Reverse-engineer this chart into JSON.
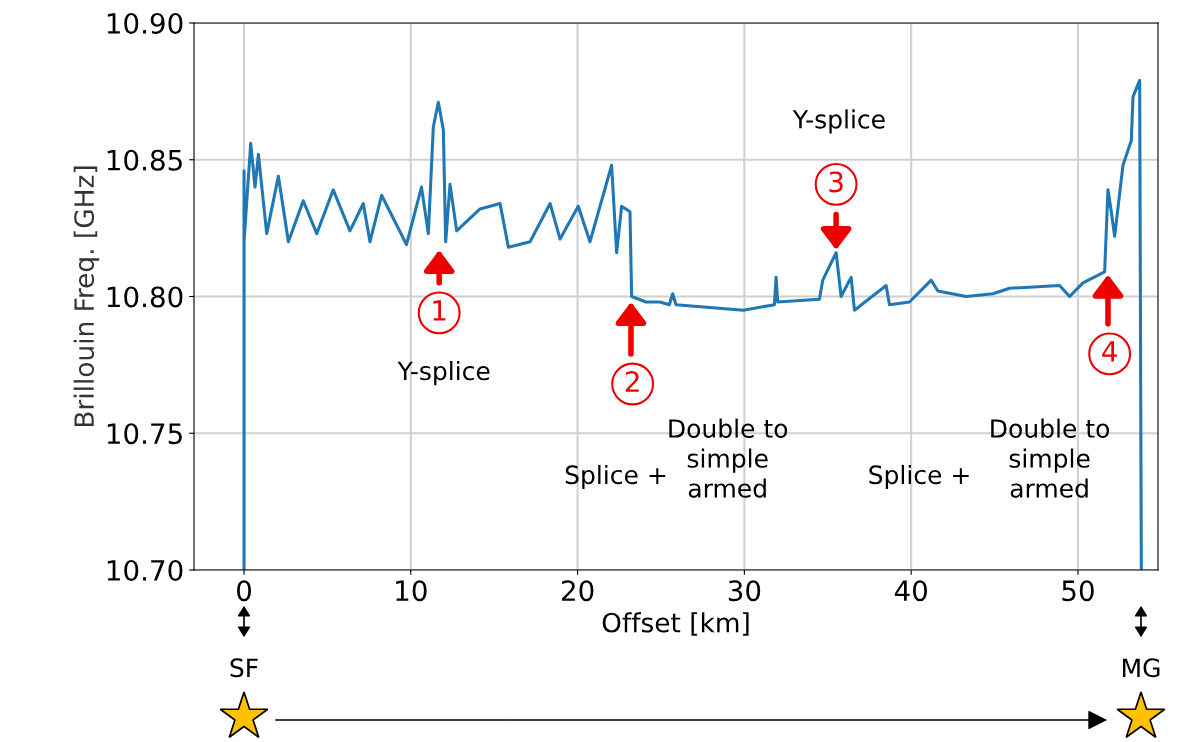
{
  "chart_data": {
    "type": "line",
    "xlabel": "Offset [km]",
    "ylabel": "Brillouin Freq. [GHz]",
    "xlim": [
      -3,
      54.8
    ],
    "ylim": [
      10.7,
      10.9
    ],
    "xticks": [
      0,
      10,
      20,
      30,
      40,
      50
    ],
    "yticks": [
      {
        "value": 10.7,
        "label": "10.70"
      },
      {
        "value": 10.75,
        "label": "10.75"
      },
      {
        "value": 10.8,
        "label": "10.80"
      },
      {
        "value": 10.85,
        "label": "10.85"
      },
      {
        "value": 10.9,
        "label": "10.90"
      }
    ],
    "grid": true,
    "legend": false,
    "marker": "none",
    "line_style": "solid",
    "series": [
      {
        "color": "#1f77b4",
        "x": [
          0,
          0,
          0.01,
          0.4,
          0.66,
          0.86,
          1.36,
          2.06,
          2.66,
          3.55,
          4.36,
          5.35,
          6.35,
          7.15,
          7.55,
          8.25,
          9.74,
          10.64,
          11.05,
          11.35,
          11.65,
          11.95,
          12.09,
          12.35,
          12.75,
          14.15,
          15.35,
          15.85,
          17.15,
          18.35,
          18.95,
          20.04,
          20.74,
          22.04,
          22.34,
          22.64,
          23.14,
          23.24,
          24.1,
          24.94,
          25.5,
          25.7,
          25.9,
          29.94,
          31.8,
          31.9,
          32.0,
          34.5,
          34.7,
          35.5,
          35.8,
          36.4,
          36.6,
          38.5,
          38.7,
          39.9,
          41.2,
          41.6,
          43.3,
          44.9,
          45.9,
          48.9,
          49.5,
          50.3,
          51.6,
          51.8,
          52.0,
          52.2,
          52.7,
          53.2,
          53.3,
          53.7,
          53.8
        ],
        "values": [
          10.7,
          10.846,
          10.821,
          10.856,
          10.84,
          10.852,
          10.823,
          10.844,
          10.82,
          10.835,
          10.823,
          10.839,
          10.824,
          10.834,
          10.82,
          10.837,
          10.819,
          10.84,
          10.823,
          10.862,
          10.871,
          10.861,
          10.82,
          10.841,
          10.824,
          10.832,
          10.834,
          10.818,
          10.82,
          10.834,
          10.821,
          10.833,
          10.82,
          10.848,
          10.816,
          10.833,
          10.831,
          10.8,
          10.798,
          10.798,
          10.797,
          10.801,
          10.797,
          10.795,
          10.797,
          10.807,
          10.798,
          10.799,
          10.806,
          10.816,
          10.8,
          10.807,
          10.795,
          10.804,
          10.797,
          10.798,
          10.806,
          10.802,
          10.8,
          10.801,
          10.803,
          10.804,
          10.8,
          10.805,
          10.809,
          10.839,
          10.831,
          10.822,
          10.848,
          10.857,
          10.873,
          10.879,
          10.7
        ]
      }
    ],
    "annotations": [
      "1",
      "Y-splice",
      {
        "text": "2",
        "x": 23.2,
        "y": 10.798
      },
      "Splice +",
      "Double to\nsimple\narmed",
      "Y-splice",
      {
        "text": "3",
        "x": 35.5,
        "y": 10.817
      },
      {
        "text": "4",
        "x": 51.8,
        "y": 10.808
      },
      "Double to\nsimple\narmed",
      "Splice +",
      "SF",
      "MG"
    ]
  }
}
